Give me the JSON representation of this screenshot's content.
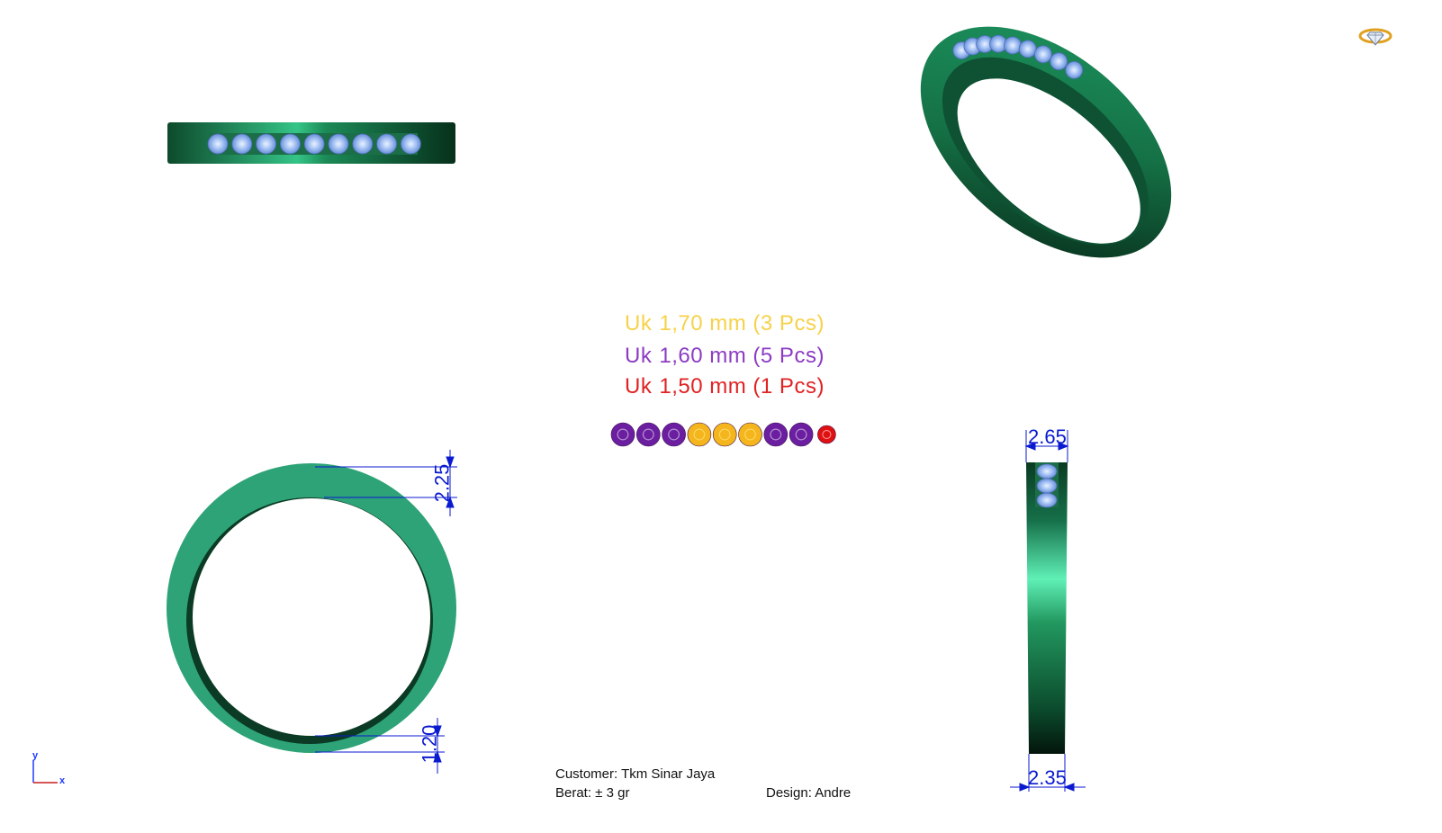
{
  "specs": [
    {
      "uk": "Uk",
      "detail": "1,70 mm (3 Pcs)",
      "color": "#f6d24a"
    },
    {
      "uk": "Uk",
      "detail": "1,60 mm (5 Pcs)",
      "color": "#8c3bc4"
    },
    {
      "uk": "Uk",
      "detail": "1,50 mm (1 Pcs)",
      "color": "#e02222"
    }
  ],
  "stone_palette": {
    "purple": "#6b1fa0",
    "yellow": "#f5b51c",
    "red": "#e01010",
    "order": [
      "purple",
      "purple",
      "purple",
      "yellow",
      "yellow",
      "yellow",
      "purple",
      "purple",
      "red"
    ]
  },
  "dimensions": {
    "top_thickness": "2.25",
    "bottom_thickness": "1.20",
    "side_top_width": "2.65",
    "side_bottom_width": "2.35"
  },
  "footer": {
    "customer": "Customer: Tkm Sinar Jaya",
    "berat": "Berat: ± 3 gr",
    "design": "Design: Andre"
  },
  "axes": {
    "y": "y",
    "x": "x"
  },
  "colors": {
    "ring_green": "#1f7a4c",
    "ring_dark": "#0c3d24",
    "ring_flat": "#2fa37a",
    "stone_blue": "#8fb3f0",
    "dim_blue": "#0a1ad0"
  },
  "icons": {
    "corner": "diamond-ring-icon"
  }
}
